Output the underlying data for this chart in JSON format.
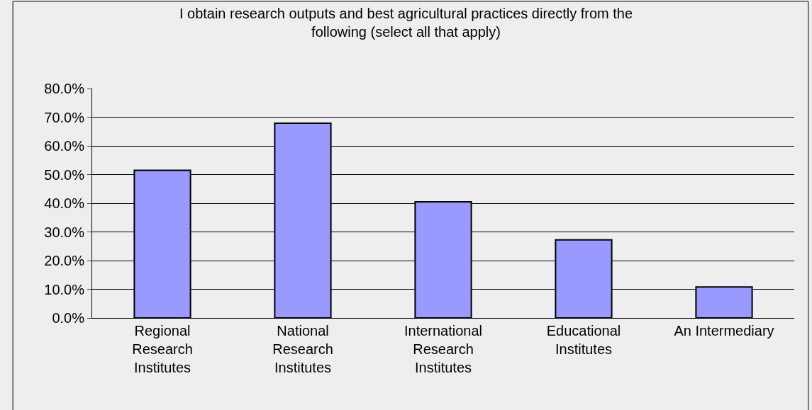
{
  "chart_data": {
    "type": "bar",
    "title": "I obtain research outputs and best agricultural practices directly from the\nfollowing (select all that apply)",
    "categories": [
      "Regional\nResearch\nInstitutes",
      "National\nResearch\nInstitutes",
      "International\nResearch\nInstitutes",
      "Educational\nInstitutes",
      "An Intermediary"
    ],
    "values": [
      51.5,
      67.9,
      40.5,
      27.2,
      10.8
    ],
    "color": "#9999ff",
    "ylim": [
      0,
      80
    ],
    "yticks": [
      {
        "value": 0,
        "label": "0.0%"
      },
      {
        "value": 10,
        "label": "10.0%"
      },
      {
        "value": 20,
        "label": "20.0%"
      },
      {
        "value": 30,
        "label": "30.0%"
      },
      {
        "value": 40,
        "label": "40.0%"
      },
      {
        "value": 50,
        "label": "50.0%"
      },
      {
        "value": 60,
        "label": "60.0%"
      },
      {
        "value": 70,
        "label": "70.0%"
      },
      {
        "value": 80,
        "label": "80.0%"
      }
    ],
    "grid": "y",
    "legend": false
  }
}
